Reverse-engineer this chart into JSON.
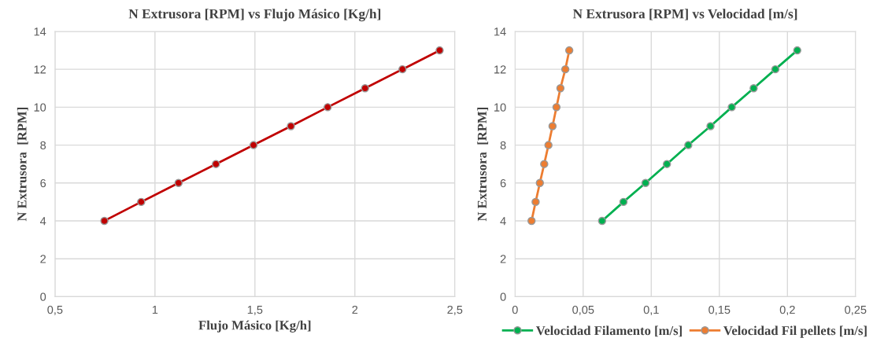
{
  "chart_data": [
    {
      "type": "line",
      "title": "N Extrusora [RPM] vs Flujo Másico [Kg/h]",
      "xlabel": "Flujo Másico [Kg/h]",
      "ylabel": "N Extrusora  [RPM]",
      "series": [
        {
          "color": "#c00000",
          "x": [
            0.747,
            0.931,
            1.118,
            1.305,
            1.493,
            1.68,
            1.864,
            2.051,
            2.238,
            2.424
          ],
          "values": [
            4,
            5,
            6,
            7,
            8,
            9,
            10,
            11,
            12,
            13
          ]
        }
      ],
      "xlim": [
        0.5,
        2.5
      ],
      "xticks": [
        {
          "value": 0.5,
          "label": "0,5"
        },
        1,
        {
          "value": 1.5,
          "label": "1,5"
        },
        2,
        {
          "value": 2.5,
          "label": "2,5"
        }
      ],
      "ylim": [
        0,
        14
      ],
      "yticks": [
        0,
        2,
        4,
        6,
        8,
        10,
        12,
        14
      ],
      "grid": true,
      "marker": "circle",
      "line_style": "solid",
      "legend": false
    },
    {
      "type": "line",
      "title": "N Extrusora [RPM] vs Velocidad [m/s]",
      "ylabel": "N Extrusora  [RPM]",
      "series": [
        {
          "name": "Velocidad Filamento [m/s]",
          "color": "#00b050",
          "x": [
            0.0639,
            0.0796,
            0.0958,
            0.1115,
            0.1272,
            0.1435,
            0.1591,
            0.1752,
            0.1911,
            0.2072
          ],
          "values": [
            4,
            5,
            6,
            7,
            8,
            9,
            10,
            11,
            12,
            13
          ]
        },
        {
          "name": "Velocidad Fil pellets [m/s]",
          "color": "#ed7d31",
          "x": [
            0.0121,
            0.0151,
            0.0182,
            0.0214,
            0.0245,
            0.0275,
            0.0304,
            0.0333,
            0.0369,
            0.0398
          ],
          "values": [
            4,
            5,
            6,
            7,
            8,
            9,
            10,
            11,
            12,
            13
          ]
        }
      ],
      "xlim": [
        0,
        0.25
      ],
      "xticks": [
        0,
        {
          "value": 0.05,
          "label": "0,05"
        },
        {
          "value": 0.1,
          "label": "0,1"
        },
        {
          "value": 0.15,
          "label": "0,15"
        },
        {
          "value": 0.2,
          "label": "0,2"
        },
        {
          "value": 0.25,
          "label": "0,25"
        }
      ],
      "ylim": [
        0,
        14
      ],
      "yticks": [
        0,
        2,
        4,
        6,
        8,
        10,
        12,
        14
      ],
      "grid": true,
      "marker": "circle",
      "line_style": "solid",
      "legend": "bottom"
    }
  ]
}
